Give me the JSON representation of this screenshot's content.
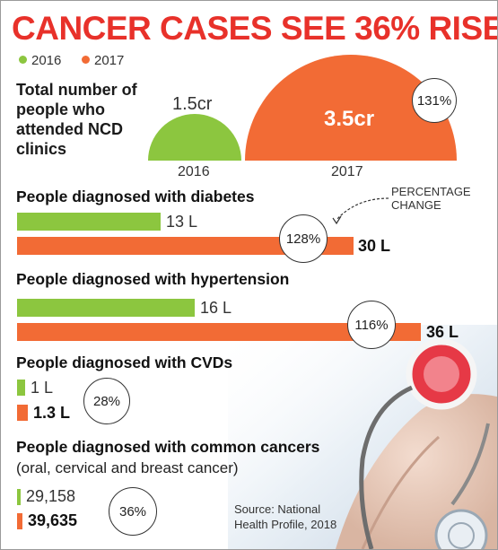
{
  "title": "CANCER CASES SEE 36% RISE",
  "legend": [
    {
      "label": "2016",
      "color": "#8cc63f"
    },
    {
      "label": "2017",
      "color": "#f26b35"
    }
  ],
  "colors": {
    "accent": "#e8312a",
    "series_2016": "#8cc63f",
    "series_2017": "#f26b35"
  },
  "annotation": {
    "percentage_change_note": "PERCENTAGE CHANGE"
  },
  "source": "Source: National Health Profile, 2018",
  "chart_data": [
    {
      "type": "area",
      "title": "Total number of people who attended NCD clinics",
      "categories": [
        "2016",
        "2017"
      ],
      "values": [
        1.5,
        3.5
      ],
      "value_labels": [
        "1.5cr",
        "3.5cr"
      ],
      "unit": "cr",
      "change": "131%"
    },
    {
      "type": "bar",
      "title": "People diagnosed with diabetes",
      "categories": [
        "2016",
        "2017"
      ],
      "values": [
        13,
        30
      ],
      "value_labels": [
        "13 L",
        "30 L"
      ],
      "unit": "L",
      "change": "128%"
    },
    {
      "type": "bar",
      "title": "People diagnosed with hypertension",
      "categories": [
        "2016",
        "2017"
      ],
      "values": [
        16,
        36
      ],
      "value_labels": [
        "16 L",
        "36 L"
      ],
      "unit": "L",
      "change": "116%"
    },
    {
      "type": "bar",
      "title": "People diagnosed with CVDs",
      "categories": [
        "2016",
        "2017"
      ],
      "values": [
        1,
        1.3
      ],
      "value_labels": [
        "1 L",
        "1.3 L"
      ],
      "unit": "L",
      "change": "28%"
    },
    {
      "type": "bar",
      "title": "People diagnosed with common cancers",
      "subtitle": "(oral, cervical and breast cancer)",
      "categories": [
        "2016",
        "2017"
      ],
      "values": [
        29158,
        39635
      ],
      "value_labels": [
        "29,158",
        "39,635"
      ],
      "change": "36%"
    }
  ]
}
